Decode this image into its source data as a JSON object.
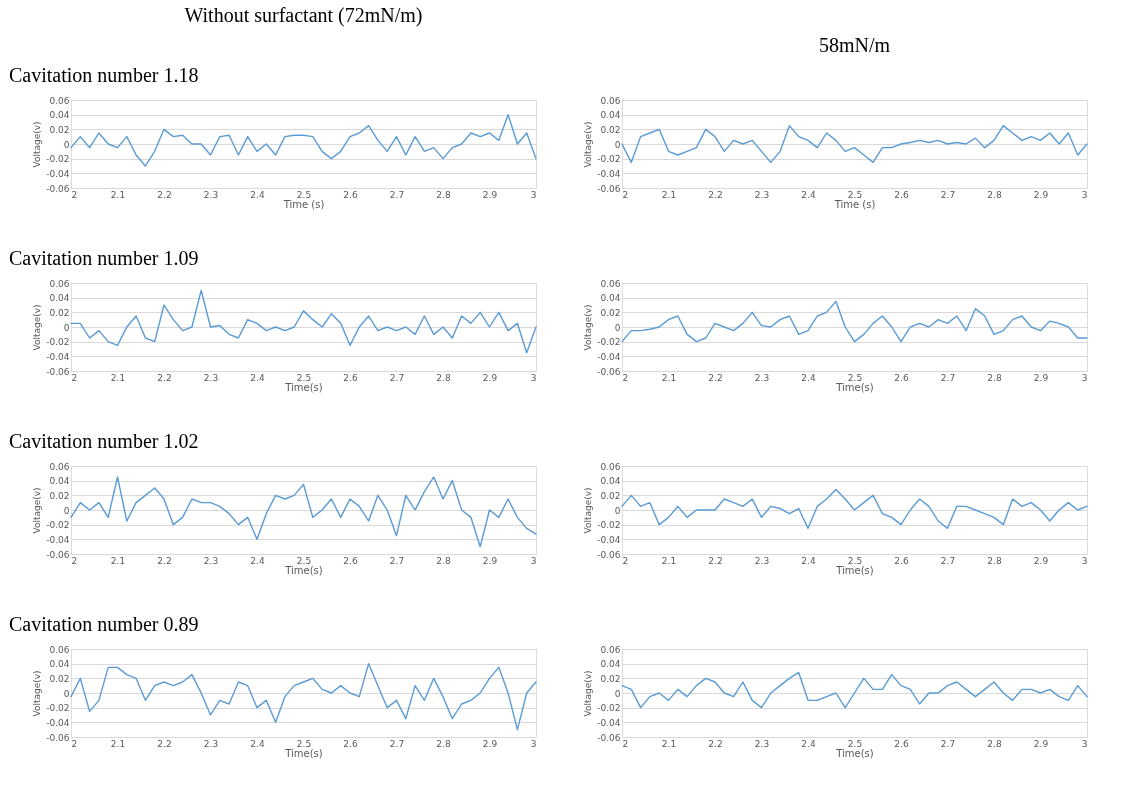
{
  "chart_data": [
    {
      "type": "line",
      "title": "Without surfactant (72mN/m)",
      "subtitle": "Cavitation number 1.18",
      "xlabel": "Time (s)",
      "ylabel": "Voltage(v)",
      "grid": "y",
      "xlim": [
        2,
        3
      ],
      "ylim": [
        -0.06,
        0.06
      ],
      "xticks": [
        2,
        2.1,
        2.2,
        2.3,
        2.4,
        2.5,
        2.6,
        2.7,
        2.8,
        2.9,
        3
      ],
      "yticks": [
        -0.06,
        -0.04,
        -0.02,
        0,
        0.02,
        0.04,
        0.06
      ],
      "x": [
        2.0,
        2.02,
        2.04,
        2.06,
        2.08,
        2.1,
        2.12,
        2.14,
        2.16,
        2.18,
        2.2,
        2.22,
        2.24,
        2.26,
        2.28,
        2.3,
        2.32,
        2.34,
        2.36,
        2.38,
        2.4,
        2.42,
        2.44,
        2.46,
        2.48,
        2.5,
        2.52,
        2.54,
        2.56,
        2.58,
        2.6,
        2.62,
        2.64,
        2.66,
        2.68,
        2.7,
        2.72,
        2.74,
        2.76,
        2.78,
        2.8,
        2.82,
        2.84,
        2.86,
        2.88,
        2.9,
        2.92,
        2.94,
        2.96,
        2.98,
        3.0
      ],
      "series": [
        {
          "color": "#5b9bd5",
          "values": [
            -0.005,
            0.01,
            -0.005,
            0.015,
            0.0,
            -0.005,
            0.01,
            -0.015,
            -0.03,
            -0.01,
            0.02,
            0.01,
            0.012,
            0.0,
            0.0,
            -0.015,
            0.01,
            0.012,
            -0.015,
            0.01,
            -0.01,
            0.0,
            -0.015,
            0.01,
            0.012,
            0.012,
            0.01,
            -0.01,
            -0.02,
            -0.01,
            0.01,
            0.015,
            0.025,
            0.005,
            -0.01,
            0.01,
            -0.015,
            0.01,
            -0.01,
            -0.005,
            -0.02,
            -0.005,
            0.0,
            0.015,
            0.01,
            0.015,
            0.005,
            0.04,
            0.0,
            0.015,
            -0.02
          ]
        }
      ]
    },
    {
      "type": "line",
      "title": "58mN/m",
      "xlabel": "Time (s)",
      "ylabel": "Voltage(v)",
      "grid": "y",
      "xlim": [
        2,
        3
      ],
      "ylim": [
        -0.06,
        0.06
      ],
      "xticks": [
        2,
        2.1,
        2.2,
        2.3,
        2.4,
        2.5,
        2.6,
        2.7,
        2.8,
        2.9,
        3
      ],
      "yticks": [
        -0.06,
        -0.04,
        -0.02,
        0,
        0.02,
        0.04,
        0.06
      ],
      "x": [
        2.0,
        2.02,
        2.04,
        2.06,
        2.08,
        2.1,
        2.12,
        2.14,
        2.16,
        2.18,
        2.2,
        2.22,
        2.24,
        2.26,
        2.28,
        2.3,
        2.32,
        2.34,
        2.36,
        2.38,
        2.4,
        2.42,
        2.44,
        2.46,
        2.48,
        2.5,
        2.52,
        2.54,
        2.56,
        2.58,
        2.6,
        2.62,
        2.64,
        2.66,
        2.68,
        2.7,
        2.72,
        2.74,
        2.76,
        2.78,
        2.8,
        2.82,
        2.84,
        2.86,
        2.88,
        2.9,
        2.92,
        2.94,
        2.96,
        2.98,
        3.0
      ],
      "series": [
        {
          "color": "#5b9bd5",
          "values": [
            0.0,
            -0.025,
            0.01,
            0.015,
            0.02,
            -0.01,
            -0.015,
            -0.01,
            -0.005,
            0.02,
            0.01,
            -0.01,
            0.005,
            0.0,
            0.005,
            -0.01,
            -0.025,
            -0.01,
            0.025,
            0.01,
            0.005,
            -0.005,
            0.015,
            0.005,
            -0.01,
            -0.005,
            -0.015,
            -0.025,
            -0.005,
            -0.005,
            0.0,
            0.002,
            0.005,
            0.002,
            0.005,
            0.0,
            0.002,
            0.0,
            0.008,
            -0.005,
            0.005,
            0.025,
            0.015,
            0.005,
            0.01,
            0.005,
            0.015,
            0.0,
            0.015,
            -0.015,
            0.0
          ]
        }
      ]
    },
    {
      "type": "line",
      "title": "Cavitation number 1.09",
      "xlabel": "Time(s)",
      "ylabel": "Voltage(v)",
      "grid": "y",
      "xlim": [
        2,
        3
      ],
      "ylim": [
        -0.06,
        0.06
      ],
      "xticks": [
        2,
        2.1,
        2.2,
        2.3,
        2.4,
        2.5,
        2.6,
        2.7,
        2.8,
        2.9,
        3
      ],
      "yticks": [
        -0.06,
        -0.04,
        -0.02,
        0,
        0.02,
        0.04,
        0.06
      ],
      "x": [
        2.0,
        2.02,
        2.04,
        2.06,
        2.08,
        2.1,
        2.12,
        2.14,
        2.16,
        2.18,
        2.2,
        2.22,
        2.24,
        2.26,
        2.28,
        2.3,
        2.32,
        2.34,
        2.36,
        2.38,
        2.4,
        2.42,
        2.44,
        2.46,
        2.48,
        2.5,
        2.52,
        2.54,
        2.56,
        2.58,
        2.6,
        2.62,
        2.64,
        2.66,
        2.68,
        2.7,
        2.72,
        2.74,
        2.76,
        2.78,
        2.8,
        2.82,
        2.84,
        2.86,
        2.88,
        2.9,
        2.92,
        2.94,
        2.96,
        2.98,
        3.0
      ],
      "series": [
        {
          "color": "#5b9bd5",
          "values": [
            0.005,
            0.005,
            -0.015,
            -0.005,
            -0.02,
            -0.025,
            0.0,
            0.015,
            -0.015,
            -0.02,
            0.03,
            0.01,
            -0.005,
            0.0,
            0.05,
            0.0,
            0.002,
            -0.01,
            -0.015,
            0.01,
            0.005,
            -0.005,
            0.0,
            -0.005,
            0.0,
            0.022,
            0.01,
            0.0,
            0.018,
            0.005,
            -0.025,
            0.0,
            0.015,
            -0.005,
            0.0,
            -0.005,
            0.0,
            -0.01,
            0.015,
            -0.01,
            0.0,
            -0.015,
            0.015,
            0.005,
            0.02,
            0.0,
            0.02,
            -0.005,
            0.005,
            -0.035,
            0.0
          ]
        }
      ]
    },
    {
      "type": "line",
      "xlabel": "Time(s)",
      "ylabel": "Voltage(v)",
      "grid": "y",
      "xlim": [
        2,
        3
      ],
      "ylim": [
        -0.06,
        0.06
      ],
      "xticks": [
        2,
        2.1,
        2.2,
        2.3,
        2.4,
        2.5,
        2.6,
        2.7,
        2.8,
        2.9,
        3
      ],
      "yticks": [
        -0.06,
        -0.04,
        -0.02,
        0,
        0.02,
        0.04,
        0.06
      ],
      "x": [
        2.0,
        2.02,
        2.04,
        2.06,
        2.08,
        2.1,
        2.12,
        2.14,
        2.16,
        2.18,
        2.2,
        2.22,
        2.24,
        2.26,
        2.28,
        2.3,
        2.32,
        2.34,
        2.36,
        2.38,
        2.4,
        2.42,
        2.44,
        2.46,
        2.48,
        2.5,
        2.52,
        2.54,
        2.56,
        2.58,
        2.6,
        2.62,
        2.64,
        2.66,
        2.68,
        2.7,
        2.72,
        2.74,
        2.76,
        2.78,
        2.8,
        2.82,
        2.84,
        2.86,
        2.88,
        2.9,
        2.92,
        2.94,
        2.96,
        2.98,
        3.0
      ],
      "series": [
        {
          "color": "#5b9bd5",
          "values": [
            -0.02,
            -0.005,
            -0.005,
            -0.003,
            0.0,
            0.01,
            0.015,
            -0.01,
            -0.02,
            -0.015,
            0.005,
            0.0,
            -0.005,
            0.005,
            0.02,
            0.002,
            0.0,
            0.01,
            0.015,
            -0.01,
            -0.005,
            0.015,
            0.02,
            0.035,
            0.0,
            -0.02,
            -0.01,
            0.005,
            0.015,
            0.0,
            -0.02,
            0.0,
            0.005,
            0.0,
            0.01,
            0.005,
            0.015,
            -0.005,
            0.025,
            0.015,
            -0.01,
            -0.005,
            0.01,
            0.015,
            0.0,
            -0.005,
            0.008,
            0.005,
            0.0,
            -0.015,
            -0.015
          ]
        }
      ]
    },
    {
      "type": "line",
      "title": "Cavitation number 1.02",
      "xlabel": "Time(s)",
      "ylabel": "Voltage(v)",
      "grid": "y",
      "xlim": [
        2,
        3
      ],
      "ylim": [
        -0.06,
        0.06
      ],
      "xticks": [
        2,
        2.1,
        2.2,
        2.3,
        2.4,
        2.5,
        2.6,
        2.7,
        2.8,
        2.9,
        3
      ],
      "yticks": [
        -0.06,
        -0.04,
        -0.02,
        0,
        0.02,
        0.04,
        0.06
      ],
      "x": [
        2.0,
        2.02,
        2.04,
        2.06,
        2.08,
        2.1,
        2.12,
        2.14,
        2.16,
        2.18,
        2.2,
        2.22,
        2.24,
        2.26,
        2.28,
        2.3,
        2.32,
        2.34,
        2.36,
        2.38,
        2.4,
        2.42,
        2.44,
        2.46,
        2.48,
        2.5,
        2.52,
        2.54,
        2.56,
        2.58,
        2.6,
        2.62,
        2.64,
        2.66,
        2.68,
        2.7,
        2.72,
        2.74,
        2.76,
        2.78,
        2.8,
        2.82,
        2.84,
        2.86,
        2.88,
        2.9,
        2.92,
        2.94,
        2.96,
        2.98,
        3.0
      ],
      "series": [
        {
          "color": "#5b9bd5",
          "values": [
            -0.01,
            0.01,
            0.0,
            0.01,
            -0.01,
            0.045,
            -0.015,
            0.01,
            0.02,
            0.03,
            0.015,
            -0.02,
            -0.01,
            0.015,
            0.01,
            0.01,
            0.005,
            -0.005,
            -0.02,
            -0.01,
            -0.04,
            -0.005,
            0.02,
            0.015,
            0.02,
            0.035,
            -0.01,
            0.0,
            0.015,
            -0.01,
            0.015,
            0.005,
            -0.015,
            0.02,
            0.0,
            -0.035,
            0.02,
            0.0,
            0.025,
            0.045,
            0.015,
            0.04,
            0.0,
            -0.01,
            -0.05,
            0.0,
            -0.01,
            0.015,
            -0.01,
            -0.025,
            -0.033
          ]
        }
      ]
    },
    {
      "type": "line",
      "xlabel": "Time(s)",
      "ylabel": "Voltage(v)",
      "grid": "y",
      "xlim": [
        2,
        3
      ],
      "ylim": [
        -0.06,
        0.06
      ],
      "xticks": [
        2,
        2.1,
        2.2,
        2.3,
        2.4,
        2.5,
        2.6,
        2.7,
        2.8,
        2.9,
        3
      ],
      "yticks": [
        -0.06,
        -0.04,
        -0.02,
        0,
        0.02,
        0.04,
        0.06
      ],
      "x": [
        2.0,
        2.02,
        2.04,
        2.06,
        2.08,
        2.1,
        2.12,
        2.14,
        2.16,
        2.18,
        2.2,
        2.22,
        2.24,
        2.26,
        2.28,
        2.3,
        2.32,
        2.34,
        2.36,
        2.38,
        2.4,
        2.42,
        2.44,
        2.46,
        2.48,
        2.5,
        2.52,
        2.54,
        2.56,
        2.58,
        2.6,
        2.62,
        2.64,
        2.66,
        2.68,
        2.7,
        2.72,
        2.74,
        2.76,
        2.78,
        2.8,
        2.82,
        2.84,
        2.86,
        2.88,
        2.9,
        2.92,
        2.94,
        2.96,
        2.98,
        3.0
      ],
      "series": [
        {
          "color": "#5b9bd5",
          "values": [
            0.005,
            0.02,
            0.005,
            0.01,
            -0.02,
            -0.01,
            0.005,
            -0.01,
            0.0,
            0.0,
            0.0,
            0.015,
            0.01,
            0.005,
            0.015,
            -0.01,
            0.005,
            0.002,
            -0.005,
            0.002,
            -0.025,
            0.005,
            0.015,
            0.028,
            0.015,
            0.0,
            0.01,
            0.02,
            -0.005,
            -0.01,
            -0.02,
            0.0,
            0.015,
            0.005,
            -0.015,
            -0.025,
            0.005,
            0.005,
            0.0,
            -0.005,
            -0.01,
            -0.02,
            0.015,
            0.005,
            0.01,
            0.0,
            -0.015,
            0.0,
            0.01,
            0.0,
            0.005
          ]
        }
      ]
    },
    {
      "type": "line",
      "title": "Cavitation number 0.89",
      "xlabel": "Time(s)",
      "ylabel": "Voltage(v)",
      "grid": "y",
      "xlim": [
        2,
        3
      ],
      "ylim": [
        -0.06,
        0.06
      ],
      "xticks": [
        2,
        2.1,
        2.2,
        2.3,
        2.4,
        2.5,
        2.6,
        2.7,
        2.8,
        2.9,
        3
      ],
      "yticks": [
        -0.06,
        -0.04,
        -0.02,
        0,
        0.02,
        0.04,
        0.06
      ],
      "x": [
        2.0,
        2.02,
        2.04,
        2.06,
        2.08,
        2.1,
        2.12,
        2.14,
        2.16,
        2.18,
        2.2,
        2.22,
        2.24,
        2.26,
        2.28,
        2.3,
        2.32,
        2.34,
        2.36,
        2.38,
        2.4,
        2.42,
        2.44,
        2.46,
        2.48,
        2.5,
        2.52,
        2.54,
        2.56,
        2.58,
        2.6,
        2.62,
        2.64,
        2.66,
        2.68,
        2.7,
        2.72,
        2.74,
        2.76,
        2.78,
        2.8,
        2.82,
        2.84,
        2.86,
        2.88,
        2.9,
        2.92,
        2.94,
        2.96,
        2.98,
        3.0
      ],
      "series": [
        {
          "color": "#5b9bd5",
          "values": [
            -0.005,
            0.02,
            -0.025,
            -0.01,
            0.035,
            0.035,
            0.025,
            0.02,
            -0.01,
            0.01,
            0.015,
            0.01,
            0.015,
            0.025,
            0.0,
            -0.03,
            -0.01,
            -0.015,
            0.015,
            0.01,
            -0.02,
            -0.01,
            -0.04,
            -0.005,
            0.01,
            0.015,
            0.02,
            0.005,
            0.0,
            0.01,
            0.0,
            -0.005,
            0.04,
            0.01,
            -0.02,
            -0.01,
            -0.035,
            0.01,
            -0.01,
            0.02,
            -0.005,
            -0.035,
            -0.015,
            -0.01,
            0.0,
            0.02,
            0.035,
            0.0,
            -0.05,
            0.0,
            0.015
          ]
        }
      ]
    },
    {
      "type": "line",
      "xlabel": "Time(s)",
      "ylabel": "Voltage(v)",
      "grid": "y",
      "xlim": [
        2,
        3
      ],
      "ylim": [
        -0.06,
        0.06
      ],
      "xticks": [
        2,
        2.1,
        2.2,
        2.3,
        2.4,
        2.5,
        2.6,
        2.7,
        2.8,
        2.9,
        3
      ],
      "yticks": [
        -0.06,
        -0.04,
        -0.02,
        0,
        0.02,
        0.04,
        0.06
      ],
      "x": [
        2.0,
        2.02,
        2.04,
        2.06,
        2.08,
        2.1,
        2.12,
        2.14,
        2.16,
        2.18,
        2.2,
        2.22,
        2.24,
        2.26,
        2.28,
        2.3,
        2.32,
        2.34,
        2.36,
        2.38,
        2.4,
        2.42,
        2.44,
        2.46,
        2.48,
        2.5,
        2.52,
        2.54,
        2.56,
        2.58,
        2.6,
        2.62,
        2.64,
        2.66,
        2.68,
        2.7,
        2.72,
        2.74,
        2.76,
        2.78,
        2.8,
        2.82,
        2.84,
        2.86,
        2.88,
        2.9,
        2.92,
        2.94,
        2.96,
        2.98,
        3.0
      ],
      "series": [
        {
          "color": "#5b9bd5",
          "values": [
            0.01,
            0.005,
            -0.02,
            -0.005,
            0.0,
            -0.01,
            0.005,
            -0.005,
            0.01,
            0.02,
            0.015,
            0.0,
            -0.005,
            0.015,
            -0.01,
            -0.02,
            0.0,
            0.01,
            0.02,
            0.028,
            -0.01,
            -0.01,
            -0.005,
            0.0,
            -0.02,
            0.0,
            0.02,
            0.005,
            0.005,
            0.025,
            0.01,
            0.005,
            -0.015,
            0.0,
            0.0,
            0.01,
            0.015,
            0.005,
            -0.005,
            0.005,
            0.015,
            0.0,
            -0.01,
            0.005,
            0.005,
            0.0,
            0.005,
            -0.005,
            -0.01,
            0.01,
            -0.005
          ]
        }
      ]
    }
  ]
}
